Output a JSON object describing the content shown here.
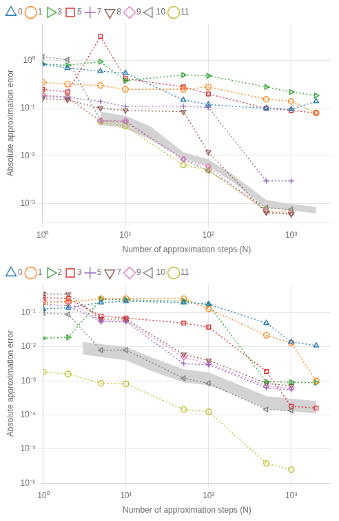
{
  "chart_data": [
    {
      "type": "line",
      "xlabel": "Number of approximation steps (N)",
      "ylabel": "Absolute approximation error",
      "log": true,
      "grid": true,
      "legend": "upper left",
      "xlim": [
        1,
        3000
      ],
      "ylim": [
        0.0004,
        6
      ],
      "xticks": [
        {
          "value": 1,
          "label": "10⁰"
        },
        {
          "value": 10,
          "label": "10¹"
        },
        {
          "value": 100,
          "label": "10²"
        },
        {
          "value": 1000,
          "label": "10³"
        }
      ],
      "yticks": [
        {
          "value": 0.001,
          "label": "10⁻³"
        },
        {
          "value": 0.01,
          "label": "10⁻²"
        },
        {
          "value": 0.1,
          "label": "10⁻¹"
        },
        {
          "value": 1,
          "label": "10⁰"
        }
      ],
      "series": [
        {
          "name": "0",
          "color": "#1f77b4",
          "marker": "^",
          "line_style": "dotted",
          "x": [
            1,
            2,
            5,
            10,
            50,
            100,
            500,
            1000,
            2000
          ],
          "values": [
            0.85,
            0.7,
            0.6,
            0.55,
            0.15,
            0.12,
            0.1,
            0.095,
            0.14
          ]
        },
        {
          "name": "1",
          "color": "#ff7f0e",
          "marker": "o",
          "line_style": "dotted",
          "x": [
            1,
            2,
            5,
            10,
            50,
            100,
            500,
            1000,
            2000
          ],
          "values": [
            0.35,
            0.32,
            0.3,
            0.25,
            0.25,
            0.28,
            0.155,
            0.14,
            0.08
          ]
        },
        {
          "name": "3",
          "color": "#2ca02c",
          "marker": ">",
          "line_style": "dotted",
          "x": [
            1,
            2,
            5,
            10,
            50,
            100,
            500,
            1000,
            2000
          ],
          "values": [
            0.85,
            0.8,
            0.95,
            0.38,
            0.5,
            0.48,
            0.28,
            0.22,
            0.185
          ]
        },
        {
          "name": "5",
          "color": "#d62728",
          "marker": "s",
          "line_style": "dotted",
          "x": [
            1,
            2,
            5,
            10,
            50,
            100,
            500,
            1000,
            2000
          ],
          "values": [
            0.25,
            0.22,
            3.2,
            0.42,
            0.28,
            0.2,
            0.1,
            0.09,
            0.08
          ]
        },
        {
          "name": "7",
          "color": "#9467bd",
          "marker": "P",
          "line_style": "dotted",
          "x": [
            1,
            2,
            5,
            10,
            50,
            100,
            500,
            1000
          ],
          "values": [
            0.18,
            0.17,
            0.14,
            0.11,
            0.11,
            0.105,
            0.003,
            0.003
          ]
        },
        {
          "name": "8",
          "color": "#8c564b",
          "marker": "v",
          "line_style": "dotted",
          "x": [
            1,
            2,
            5,
            10,
            50,
            100,
            500,
            1000
          ],
          "values": [
            0.16,
            0.15,
            0.1,
            0.09,
            0.085,
            0.012,
            0.00065,
            0.0006
          ]
        },
        {
          "name": "9",
          "color": "#e377c2",
          "marker": "D",
          "line_style": "dotted",
          "x": [
            1,
            2,
            5,
            10,
            50,
            100,
            500,
            1000
          ],
          "values": [
            0.19,
            0.17,
            0.055,
            0.055,
            0.0085,
            0.006,
            0.00068,
            0.00062
          ]
        },
        {
          "name": "10",
          "color": "#7f7f7f",
          "marker": "<",
          "line_style": "dotted",
          "x": [
            1,
            2,
            5,
            10,
            50,
            100,
            500,
            1000
          ],
          "values": [
            1.2,
            1.05,
            0.055,
            0.052,
            0.0085,
            0.005,
            0.00082,
            0.00075
          ]
        },
        {
          "name": "11",
          "color": "#bcbd22",
          "marker": "o",
          "line_style": "dotted",
          "x": [
            1,
            2,
            5,
            10,
            50,
            100,
            500,
            1000
          ],
          "values": [
            0.19,
            0.17,
            0.052,
            0.042,
            0.0065,
            0.005,
            0.00072,
            0.00065
          ]
        }
      ],
      "band": {
        "color": "lightgray",
        "x": [
          5,
          10,
          20,
          50,
          100,
          200,
          500,
          1000,
          2000
        ],
        "lower": [
          0.045,
          0.038,
          0.022,
          0.009,
          0.006,
          0.0028,
          0.00082,
          0.00072,
          0.00062
        ],
        "upper": [
          0.085,
          0.07,
          0.042,
          0.012,
          0.0085,
          0.004,
          0.0012,
          0.00098,
          0.00085
        ]
      }
    },
    {
      "type": "line",
      "xlabel": "Number of approximation steps (N)",
      "ylabel": "Absolute approximation error",
      "log": true,
      "grid": true,
      "legend": "upper left",
      "xlim": [
        1,
        3000
      ],
      "ylim": [
        1e-06,
        0.7
      ],
      "xticks": [
        {
          "value": 1,
          "label": "10⁰"
        },
        {
          "value": 10,
          "label": "10¹"
        },
        {
          "value": 100,
          "label": "10²"
        },
        {
          "value": 1000,
          "label": "10³"
        }
      ],
      "yticks": [
        {
          "value": 1e-06,
          "label": "10⁻⁶"
        },
        {
          "value": 1e-05,
          "label": "10⁻⁵"
        },
        {
          "value": 0.0001,
          "label": "10⁻⁴"
        },
        {
          "value": 0.001,
          "label": "10⁻³"
        },
        {
          "value": 0.01,
          "label": "10⁻²"
        },
        {
          "value": 0.1,
          "label": "10⁻¹"
        }
      ],
      "series": [
        {
          "name": "0",
          "color": "#1f77b4",
          "marker": "^",
          "line_style": "dotted",
          "x": [
            1,
            2,
            5,
            10,
            50,
            100,
            500,
            1000,
            2000
          ],
          "values": [
            0.13,
            0.14,
            0.2,
            0.22,
            0.2,
            0.18,
            0.05,
            0.014,
            0.011
          ]
        },
        {
          "name": "1",
          "color": "#ff7f0e",
          "marker": "o",
          "line_style": "dotted",
          "x": [
            1,
            2,
            5,
            10,
            50,
            100,
            500,
            1000,
            2000
          ],
          "values": [
            0.2,
            0.21,
            0.26,
            0.26,
            0.26,
            0.13,
            0.022,
            0.013,
            0.001
          ]
        },
        {
          "name": "2",
          "color": "#2ca02c",
          "marker": ">",
          "line_style": "dotted",
          "x": [
            1,
            2,
            5,
            10,
            50,
            100,
            500,
            1000,
            2000
          ],
          "values": [
            0.018,
            0.019,
            0.25,
            0.24,
            0.22,
            0.17,
            0.00095,
            0.00092,
            0.00088
          ]
        },
        {
          "name": "3",
          "color": "#d62728",
          "marker": "s",
          "line_style": "dotted",
          "x": [
            1,
            2,
            5,
            10,
            50,
            100,
            500,
            1000,
            2000
          ],
          "values": [
            0.28,
            0.26,
            0.08,
            0.07,
            0.05,
            0.038,
            0.0019,
            0.00018,
            0.00016
          ]
        },
        {
          "name": "5",
          "color": "#9467bd",
          "marker": "P",
          "line_style": "dotted",
          "x": [
            1,
            2,
            5,
            10,
            50,
            100,
            500,
            1000
          ],
          "values": [
            0.18,
            0.16,
            0.055,
            0.055,
            0.0032,
            0.003,
            0.00062,
            0.00055
          ]
        },
        {
          "name": "7",
          "color": "#8c564b",
          "marker": "v",
          "line_style": "dotted",
          "x": [
            1,
            2,
            5,
            10,
            50,
            100,
            500,
            1000
          ],
          "values": [
            0.36,
            0.35,
            0.065,
            0.065,
            0.006,
            0.004,
            0.00085,
            0.00072
          ]
        },
        {
          "name": "9",
          "color": "#e377c2",
          "marker": "D",
          "line_style": "dotted",
          "x": [
            1,
            2,
            5,
            10,
            50,
            100,
            500,
            1000
          ],
          "values": [
            0.23,
            0.21,
            0.058,
            0.058,
            0.005,
            0.0032,
            0.00072,
            0.00062
          ]
        },
        {
          "name": "10",
          "color": "#7f7f7f",
          "marker": "<",
          "line_style": "dotted",
          "x": [
            1,
            2,
            5,
            10,
            50,
            100,
            500,
            1000
          ],
          "values": [
            0.1,
            0.09,
            0.008,
            0.008,
            0.0012,
            0.00085,
            0.000145,
            0.000135
          ]
        },
        {
          "name": "11",
          "color": "#bcbd22",
          "marker": "o",
          "line_style": "dotted",
          "x": [
            1,
            2,
            5,
            10,
            50,
            100,
            500,
            1000
          ],
          "values": [
            0.0018,
            0.0016,
            0.00085,
            0.00082,
            0.000145,
            0.000125,
            3.8e-06,
            2.5e-06
          ]
        }
      ],
      "band": {
        "color": "lightgray",
        "x": [
          3,
          5,
          10,
          20,
          50,
          100,
          200,
          500,
          1000,
          2000
        ],
        "lower": [
          0.006,
          0.005,
          0.004,
          0.002,
          0.0009,
          0.00075,
          0.0004,
          0.00015,
          0.000128,
          0.00011
        ],
        "upper": [
          0.014,
          0.012,
          0.01,
          0.005,
          0.0022,
          0.0018,
          0.0009,
          0.00036,
          0.0003,
          0.00026
        ]
      }
    }
  ]
}
